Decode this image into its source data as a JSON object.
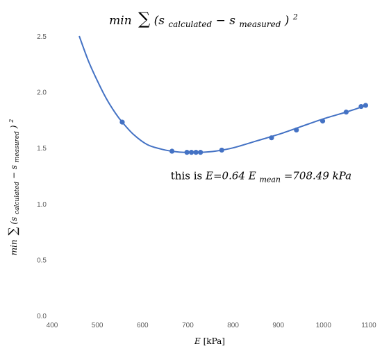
{
  "chart_data": {
    "type": "scatter",
    "title": {
      "prefix": "min",
      "sum": "∑",
      "open": "(s",
      "sub1": "calculated",
      "minus": " − s",
      "sub2": "measured",
      "close": ")",
      "sup": "2"
    },
    "xlabel": {
      "var": "E",
      "unit": " [kPa]"
    },
    "ylabel": {
      "prefix": "min",
      "sum": "∑",
      "open": "(s",
      "sub1": "calculated",
      "minus": " − s",
      "sub2": "measured",
      "close": ")",
      "sup": "2"
    },
    "xlim": [
      400,
      1100
    ],
    "ylim": [
      0,
      2.5
    ],
    "x_ticks": [
      "400",
      "500",
      "600",
      "700",
      "800",
      "900",
      "1000",
      "1100"
    ],
    "y_ticks": [
      "0.0",
      "0.5",
      "1.0",
      "1.5",
      "2.0",
      "2.5"
    ],
    "curve": {
      "x": [
        460,
        480,
        500,
        520,
        540,
        555,
        580,
        610,
        640,
        665,
        690,
        710,
        730,
        760,
        800,
        850,
        900,
        950,
        1000,
        1050,
        1080,
        1095
      ],
      "y": [
        2.5,
        2.28,
        2.1,
        1.94,
        1.81,
        1.73,
        1.62,
        1.53,
        1.49,
        1.47,
        1.46,
        1.46,
        1.46,
        1.47,
        1.5,
        1.56,
        1.62,
        1.69,
        1.76,
        1.82,
        1.86,
        1.88
      ]
    },
    "points": {
      "x": [
        555,
        665,
        698,
        708,
        718,
        728,
        775,
        885,
        940,
        998,
        1050,
        1083,
        1093
      ],
      "y": [
        1.73,
        1.47,
        1.46,
        1.46,
        1.46,
        1.46,
        1.48,
        1.59,
        1.66,
        1.74,
        1.82,
        1.87,
        1.88
      ]
    },
    "annotation": {
      "prefix": "this is ",
      "e_eq": "E=0.64 E",
      "sub": "mean",
      "rest": " =708.49 kPa",
      "x": 708.49,
      "y": 1.22
    },
    "colors": {
      "series": "#4472c4",
      "tick_text": "#595959",
      "text": "#000000"
    }
  }
}
